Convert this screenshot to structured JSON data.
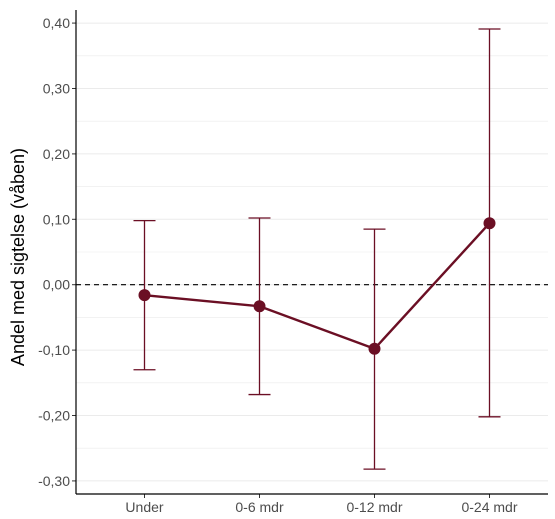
{
  "chart_data": {
    "type": "line",
    "title": "",
    "xlabel": "",
    "ylabel": "Andel med sigtelse (våben)",
    "categories": [
      "Under",
      "0-6 mdr",
      "0-12 mdr",
      "0-24 mdr"
    ],
    "series": [
      {
        "values": [
          -0.016,
          -0.033,
          -0.098,
          0.094
        ],
        "ci_lower": [
          -0.13,
          -0.168,
          -0.282,
          -0.202
        ],
        "ci_upper": [
          0.098,
          0.102,
          0.085,
          0.391
        ]
      }
    ],
    "ylim": [
      -0.32,
      0.42
    ],
    "yticks": [
      -0.3,
      -0.2,
      -0.1,
      0.0,
      0.1,
      0.2,
      0.3,
      0.4
    ],
    "ytick_labels": [
      "-0,30",
      "-0,20",
      "-0,10",
      "0,00",
      "0,10",
      "0,20",
      "0,30",
      "0,40"
    ],
    "reference_line": 0,
    "grid": true,
    "colors": {
      "series": "#6b0f24",
      "reference": "#000000",
      "grid": "#ebebeb",
      "axis": "#000000"
    }
  }
}
